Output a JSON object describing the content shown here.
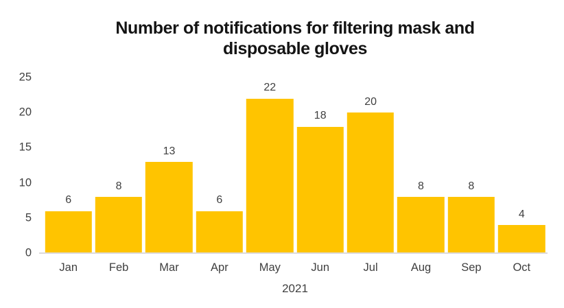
{
  "chart_data": {
    "type": "bar",
    "title": "Number of notifications for filtering mask and disposable gloves",
    "title_lines": [
      "Number of notifications for filtering mask and",
      "disposable gloves"
    ],
    "categories": [
      "Jan",
      "Feb",
      "Mar",
      "Apr",
      "May",
      "Jun",
      "Jul",
      "Aug",
      "Sep",
      "Oct"
    ],
    "values": [
      6,
      8,
      13,
      6,
      22,
      18,
      20,
      8,
      8,
      4
    ],
    "xlabel": "2021",
    "ylabel": "",
    "ylim": [
      0,
      25
    ],
    "yticks": [
      0,
      5,
      10,
      15,
      20,
      25
    ],
    "grid": false,
    "legend": "none",
    "data_labels": true,
    "colors": {
      "bar": "#FFC400",
      "axis_line": "#DCD9DA",
      "tick_label": "#3F3F3F",
      "title": "#141414",
      "background": "#FFFFFF"
    }
  }
}
